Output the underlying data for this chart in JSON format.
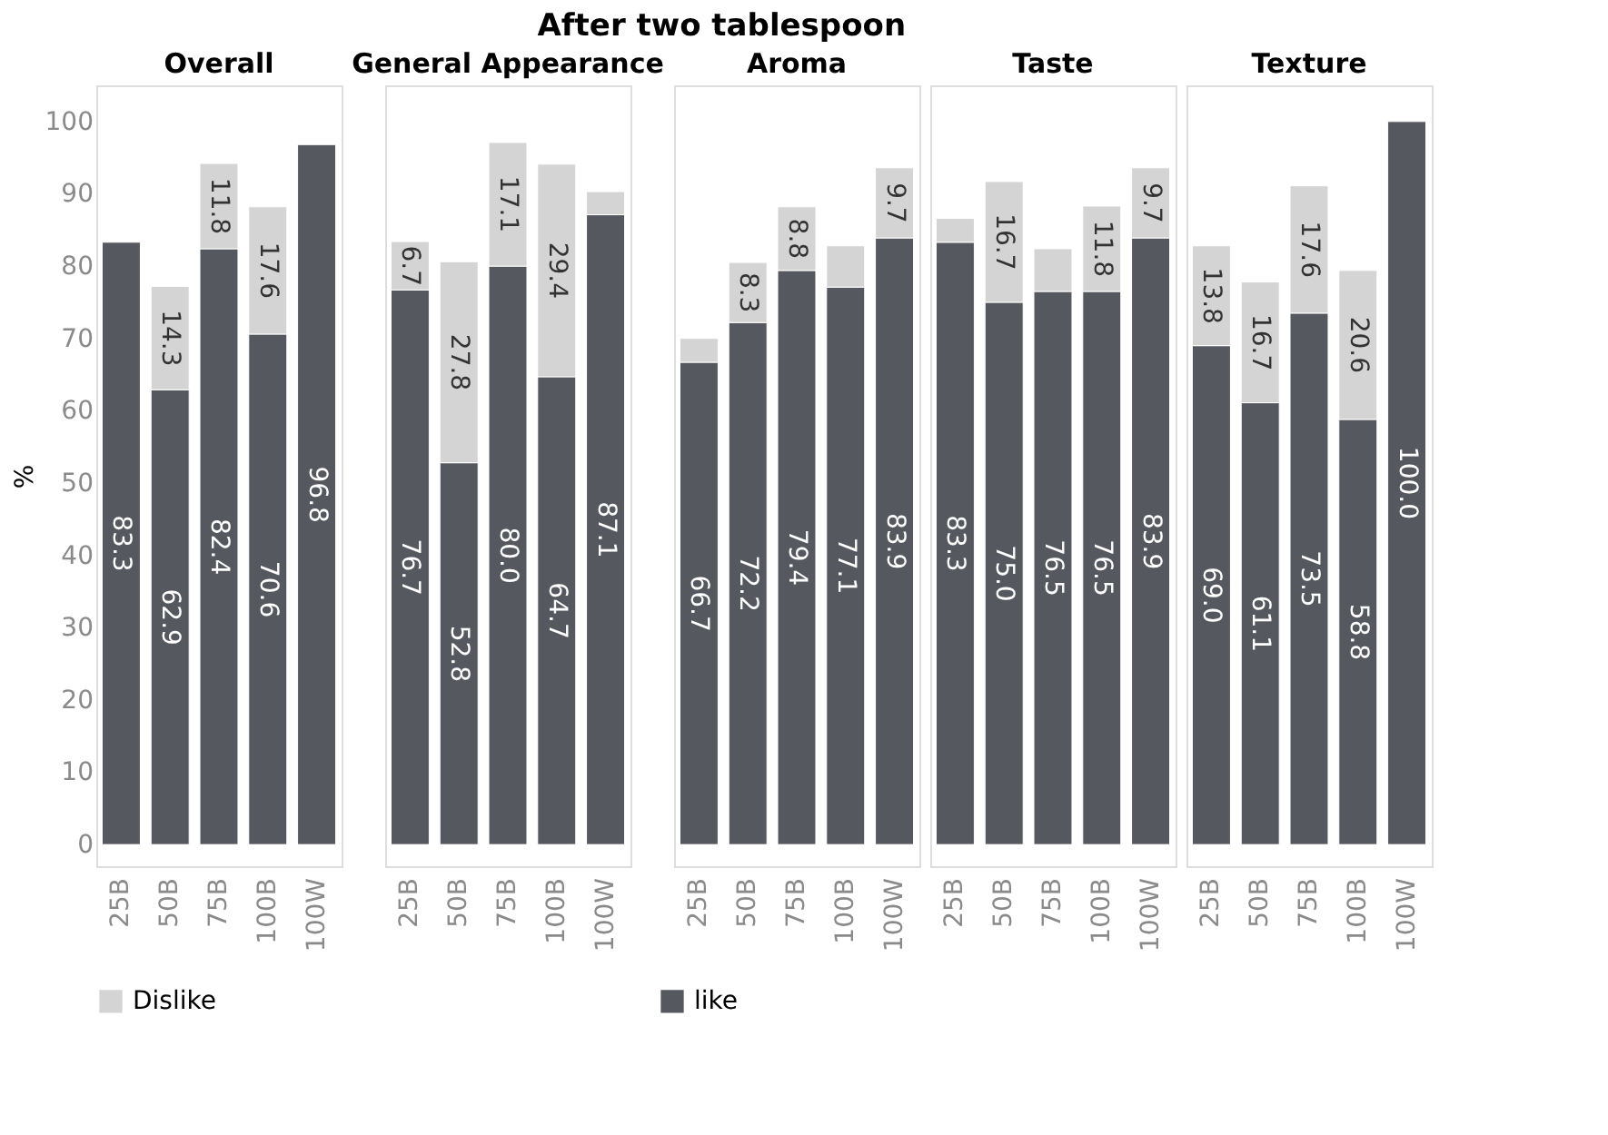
{
  "chart_data": [
    {
      "type": "bar",
      "title": "Overall",
      "annotations": [
        "After two tablespoon"
      ],
      "ylabel": "%",
      "categories": [
        "25B",
        "50B",
        "75B",
        "100B",
        "100W"
      ],
      "stacked": true,
      "ylim": [
        -3,
        105
      ],
      "yticks": [
        0,
        10,
        20,
        30,
        40,
        50,
        60,
        70,
        80,
        90,
        100
      ],
      "grid": false,
      "legend": "bottom",
      "series": [
        {
          "name": "like",
          "color": "#55585e",
          "values": [
            83.3,
            62.9,
            82.4,
            70.6,
            96.8
          ],
          "value_labels": [
            "83.3",
            "62.9",
            "82.4",
            "70.6",
            "96.8"
          ]
        },
        {
          "name": "Dislike",
          "color": "#d4d4d4",
          "values": [
            null,
            14.3,
            11.8,
            17.6,
            null
          ],
          "value_labels": [
            null,
            "14.3",
            "11.8",
            "17.6",
            null
          ]
        }
      ]
    },
    {
      "type": "bar",
      "title": "General Appearance",
      "categories": [
        "25B",
        "50B",
        "75B",
        "100B",
        "100W"
      ],
      "stacked": true,
      "ylim": [
        -3,
        105
      ],
      "grid": false,
      "tick_labels": "x",
      "series": [
        {
          "color": "#55585e",
          "values": [
            76.7,
            52.8,
            80.0,
            64.7,
            87.1
          ],
          "value_labels": [
            "76.7",
            "52.8",
            "80.0",
            "64.7",
            "87.1"
          ]
        },
        {
          "color": "#d4d4d4",
          "values": [
            6.7,
            27.8,
            17.1,
            29.4,
            3.2
          ],
          "value_labels": [
            "6.7",
            "27.8",
            "17.1",
            "29.4",
            null
          ]
        }
      ]
    },
    {
      "type": "bar",
      "title": "Aroma",
      "categories": [
        "25B",
        "50B",
        "75B",
        "100B",
        "100W"
      ],
      "stacked": true,
      "ylim": [
        -3,
        105
      ],
      "grid": false,
      "tick_labels": "x",
      "series": [
        {
          "color": "#55585e",
          "values": [
            66.7,
            72.2,
            79.4,
            77.1,
            83.9
          ],
          "value_labels": [
            "66.7",
            "72.2",
            "79.4",
            "77.1",
            "83.9"
          ]
        },
        {
          "color": "#d4d4d4",
          "values": [
            3.3,
            8.3,
            8.8,
            5.7,
            9.7
          ],
          "value_labels": [
            null,
            "8.3",
            "8.8",
            null,
            "9.7"
          ]
        }
      ]
    },
    {
      "type": "bar",
      "title": "Taste",
      "categories": [
        "25B",
        "50B",
        "75B",
        "100B",
        "100W"
      ],
      "stacked": true,
      "ylim": [
        -3,
        105
      ],
      "grid": false,
      "tick_labels": "x",
      "series": [
        {
          "color": "#55585e",
          "values": [
            83.3,
            75.0,
            76.5,
            76.5,
            83.9
          ],
          "value_labels": [
            "83.3",
            "75.0",
            "76.5",
            "76.5",
            "83.9"
          ]
        },
        {
          "color": "#d4d4d4",
          "values": [
            3.3,
            16.7,
            5.9,
            11.8,
            9.7
          ],
          "value_labels": [
            null,
            "16.7",
            null,
            "11.8",
            "9.7"
          ]
        }
      ]
    },
    {
      "type": "bar",
      "title": "Texture",
      "categories": [
        "25B",
        "50B",
        "75B",
        "100B",
        "100W"
      ],
      "stacked": true,
      "ylim": [
        -3,
        105
      ],
      "grid": false,
      "tick_labels": "x",
      "series": [
        {
          "color": "#55585e",
          "values": [
            69.0,
            61.1,
            73.5,
            58.8,
            100.0
          ],
          "value_labels": [
            "69.0",
            "61.1",
            "73.5",
            "58.8",
            "100.0"
          ]
        },
        {
          "color": "#d4d4d4",
          "values": [
            13.8,
            16.7,
            17.6,
            20.6,
            null
          ],
          "value_labels": [
            "13.8",
            "16.7",
            "17.6",
            "20.6",
            null
          ]
        }
      ]
    }
  ]
}
